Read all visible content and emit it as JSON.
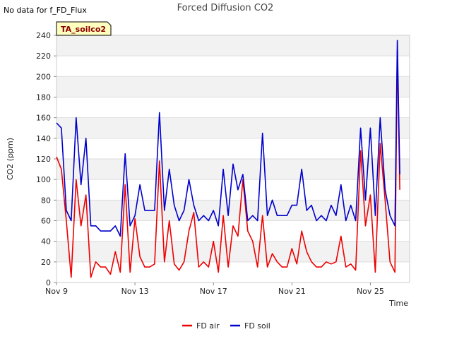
{
  "no_data_note": "No data for f_FD_Flux",
  "badge": "TA_soilco2",
  "colors": {
    "fd_air": "#ee0000",
    "fd_soil": "#0000cc",
    "band": "#f2f2f2",
    "grid": "#dddddd",
    "badge_fill": "#ffffc0"
  },
  "chart_data": {
    "type": "line",
    "title": "Forced Diffusion CO2",
    "xlabel": "Time",
    "ylabel": "CO2 (ppm)",
    "xlim": [
      "Nov 9",
      "Nov 27"
    ],
    "ylim": [
      0,
      240
    ],
    "yticks": [
      0,
      20,
      40,
      60,
      80,
      100,
      120,
      140,
      160,
      180,
      200,
      220,
      240
    ],
    "xticks": [
      "Nov 9",
      "Nov 13",
      "Nov 17",
      "Nov 21",
      "Nov 25"
    ],
    "grid": true,
    "legend": "bottom",
    "series": [
      {
        "name": "FD air",
        "color": "#ee0000",
        "x": [
          "Nov 9 00:00",
          "Nov 9 06:00",
          "Nov 9 12:00",
          "Nov 9 18:00",
          "Nov 10 00:00",
          "Nov 10 06:00",
          "Nov 10 12:00",
          "Nov 10 18:00",
          "Nov 11 00:00",
          "Nov 11 06:00",
          "Nov 11 12:00",
          "Nov 11 18:00",
          "Nov 12 00:00",
          "Nov 12 06:00",
          "Nov 12 12:00",
          "Nov 12 18:00",
          "Nov 13 00:00",
          "Nov 13 06:00",
          "Nov 13 12:00",
          "Nov 13 18:00",
          "Nov 14 00:00",
          "Nov 14 06:00",
          "Nov 14 12:00",
          "Nov 14 18:00",
          "Nov 15 00:00",
          "Nov 15 06:00",
          "Nov 15 12:00",
          "Nov 15 18:00",
          "Nov 16 00:00",
          "Nov 16 06:00",
          "Nov 16 12:00",
          "Nov 16 18:00",
          "Nov 17 00:00",
          "Nov 17 06:00",
          "Nov 17 12:00",
          "Nov 17 18:00",
          "Nov 18 00:00",
          "Nov 18 06:00",
          "Nov 18 12:00",
          "Nov 18 18:00",
          "Nov 19 00:00",
          "Nov 19 06:00",
          "Nov 19 12:00",
          "Nov 19 18:00",
          "Nov 20 00:00",
          "Nov 20 06:00",
          "Nov 20 12:00",
          "Nov 20 18:00",
          "Nov 21 00:00",
          "Nov 21 06:00",
          "Nov 21 12:00",
          "Nov 21 18:00",
          "Nov 22 00:00",
          "Nov 22 06:00",
          "Nov 22 12:00",
          "Nov 22 18:00",
          "Nov 23 00:00",
          "Nov 23 06:00",
          "Nov 23 12:00",
          "Nov 23 18:00",
          "Nov 24 00:00",
          "Nov 24 06:00",
          "Nov 24 12:00",
          "Nov 24 18:00",
          "Nov 25 00:00",
          "Nov 25 06:00",
          "Nov 25 12:00",
          "Nov 25 18:00",
          "Nov 26 00:00",
          "Nov 26 06:00",
          "Nov 26 09:00",
          "Nov 26 12:00"
        ],
        "y": [
          122,
          110,
          60,
          5,
          100,
          55,
          85,
          5,
          20,
          15,
          15,
          8,
          30,
          10,
          95,
          10,
          62,
          25,
          15,
          15,
          18,
          118,
          20,
          60,
          18,
          12,
          20,
          50,
          68,
          15,
          20,
          15,
          40,
          10,
          65,
          15,
          55,
          45,
          100,
          50,
          40,
          15,
          65,
          15,
          28,
          20,
          15,
          15,
          33,
          18,
          50,
          30,
          20,
          15,
          15,
          20,
          18,
          20,
          45,
          15,
          18,
          12,
          128,
          55,
          85,
          10,
          135,
          80,
          20,
          10,
          225,
          90
        ]
      },
      {
        "name": "FD soil",
        "color": "#0000cc",
        "x": [
          "Nov 9 00:00",
          "Nov 9 06:00",
          "Nov 9 12:00",
          "Nov 9 18:00",
          "Nov 10 00:00",
          "Nov 10 06:00",
          "Nov 10 12:00",
          "Nov 10 18:00",
          "Nov 11 00:00",
          "Nov 11 06:00",
          "Nov 11 12:00",
          "Nov 11 18:00",
          "Nov 12 00:00",
          "Nov 12 06:00",
          "Nov 12 12:00",
          "Nov 12 18:00",
          "Nov 13 00:00",
          "Nov 13 06:00",
          "Nov 13 12:00",
          "Nov 13 18:00",
          "Nov 14 00:00",
          "Nov 14 06:00",
          "Nov 14 12:00",
          "Nov 14 18:00",
          "Nov 15 00:00",
          "Nov 15 06:00",
          "Nov 15 12:00",
          "Nov 15 18:00",
          "Nov 16 00:00",
          "Nov 16 06:00",
          "Nov 16 12:00",
          "Nov 16 18:00",
          "Nov 17 00:00",
          "Nov 17 06:00",
          "Nov 17 12:00",
          "Nov 17 18:00",
          "Nov 18 00:00",
          "Nov 18 06:00",
          "Nov 18 12:00",
          "Nov 18 18:00",
          "Nov 19 00:00",
          "Nov 19 06:00",
          "Nov 19 12:00",
          "Nov 19 18:00",
          "Nov 20 00:00",
          "Nov 20 06:00",
          "Nov 20 12:00",
          "Nov 20 18:00",
          "Nov 21 00:00",
          "Nov 21 06:00",
          "Nov 21 12:00",
          "Nov 21 18:00",
          "Nov 22 00:00",
          "Nov 22 06:00",
          "Nov 22 12:00",
          "Nov 22 18:00",
          "Nov 23 00:00",
          "Nov 23 06:00",
          "Nov 23 12:00",
          "Nov 23 18:00",
          "Nov 24 00:00",
          "Nov 24 06:00",
          "Nov 24 12:00",
          "Nov 24 18:00",
          "Nov 25 00:00",
          "Nov 25 06:00",
          "Nov 25 12:00",
          "Nov 25 18:00",
          "Nov 26 00:00",
          "Nov 26 06:00",
          "Nov 26 09:00",
          "Nov 26 12:00"
        ],
        "y": [
          155,
          150,
          70,
          60,
          160,
          95,
          140,
          55,
          55,
          50,
          50,
          50,
          55,
          45,
          125,
          55,
          65,
          95,
          70,
          70,
          70,
          165,
          70,
          110,
          75,
          60,
          70,
          100,
          75,
          60,
          65,
          60,
          70,
          55,
          110,
          65,
          115,
          90,
          105,
          60,
          65,
          60,
          145,
          65,
          80,
          65,
          65,
          65,
          75,
          75,
          110,
          70,
          75,
          60,
          65,
          60,
          75,
          65,
          95,
          60,
          75,
          60,
          150,
          80,
          150,
          65,
          160,
          90,
          65,
          55,
          235,
          105
        ]
      }
    ]
  }
}
